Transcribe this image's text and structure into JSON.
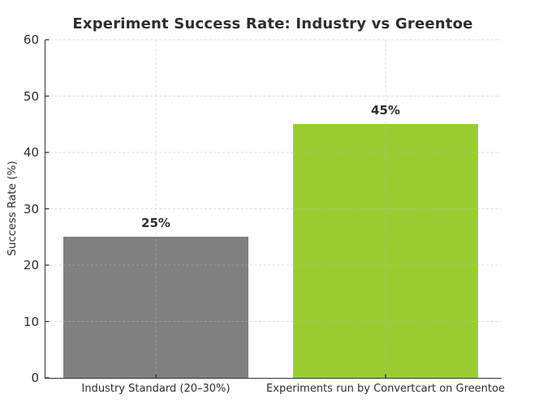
{
  "chart_data": {
    "type": "bar",
    "title": "Experiment Success Rate: Industry vs Greentoe",
    "categories": [
      "Industry Standard (20–30%)",
      "Experiments run by Convertcart on Greentoe"
    ],
    "values": [
      25,
      45
    ],
    "value_labels": [
      "25%",
      "45%"
    ],
    "bar_colors": [
      "#808080",
      "#9ACD32"
    ],
    "xlabel": "",
    "ylabel": "Success Rate (%)",
    "ylim": [
      0,
      60
    ],
    "yticks": [
      0,
      10,
      20,
      30,
      40,
      50,
      60
    ],
    "grid": "dashed light-gray horizontal lines at each y tick and vertical lines at each bar center, drawn above bars",
    "legend": "none"
  },
  "colors": {
    "background": "#ffffff",
    "text": "#2e2e2e",
    "spine": "#333333",
    "grid": "#bdbdbd",
    "bar_industry": "#808080",
    "bar_greentoe": "#9ACD32"
  }
}
